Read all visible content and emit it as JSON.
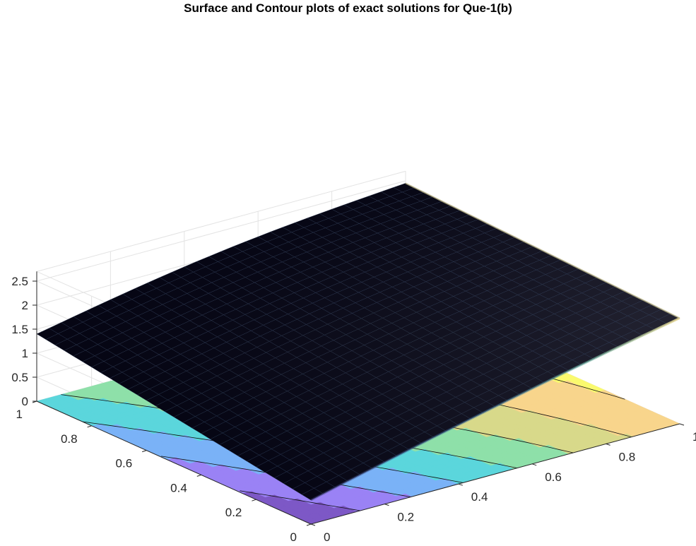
{
  "chart_data": {
    "type": "surface+contour",
    "title": "Surface and Contour plots of exact solutions for Que-1(b)",
    "xlabel": "",
    "ylabel": "",
    "zlabel": "",
    "xlim": [
      0,
      1
    ],
    "ylim": [
      0,
      1
    ],
    "zlim": [
      0,
      2.7
    ],
    "x_ticks": [
      "0",
      "0.2",
      "0.4",
      "0.6",
      "0.8",
      "1"
    ],
    "y_ticks": [
      "0",
      "0.2",
      "0.4",
      "0.6",
      "0.8",
      "1"
    ],
    "z_ticks": [
      "0",
      "0.5",
      "1",
      "1.5",
      "2",
      "2.5"
    ],
    "grid": true,
    "colormap": [
      "#7d58c6",
      "#9a82f5",
      "#7ab2f7",
      "#5bd6dc",
      "#8ee0a9",
      "#d8d98a",
      "#f8d58c",
      "#fafa6e"
    ],
    "surface_samples": [
      {
        "x": 0,
        "y": 0,
        "z": 0.5
      },
      {
        "x": 1,
        "y": 0,
        "z": 2.4
      },
      {
        "x": 0,
        "y": 1,
        "z": 1.4
      },
      {
        "x": 1,
        "y": 1,
        "z": 2.5
      },
      {
        "x": 0.5,
        "y": 0.5,
        "z": 1.75
      }
    ]
  }
}
